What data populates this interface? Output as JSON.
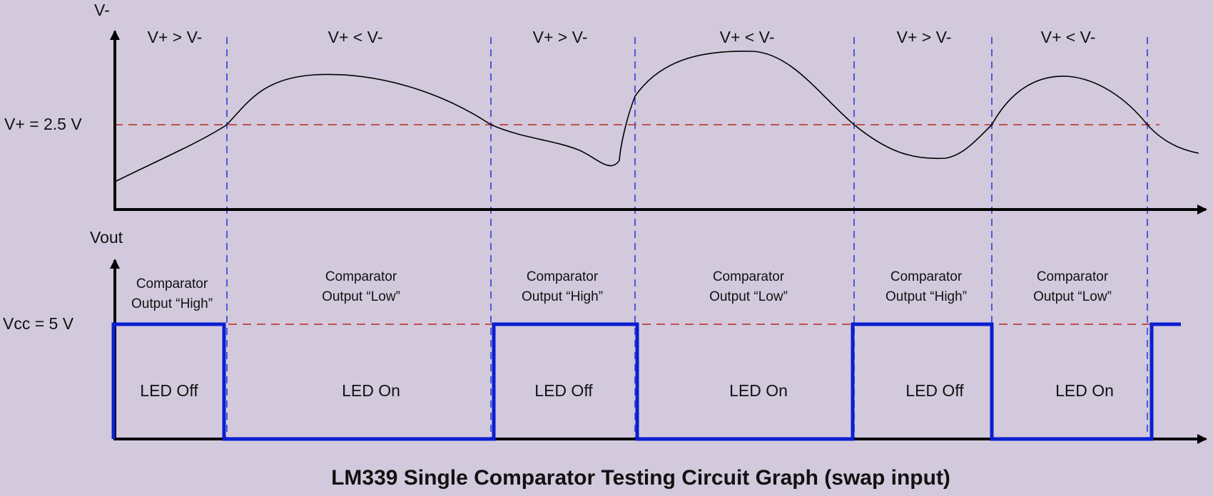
{
  "top_axis_label": "V-",
  "bottom_axis_label": "Vout",
  "vplus_label": "V+ = 2.5 V",
  "vcc_label": "Vcc = 5 V",
  "title": "LM339 Single Comparator Testing Circuit Graph (swap input)",
  "colors": {
    "background": "#d3c9dd",
    "axis": "#000000",
    "divider": "#4a5cd6",
    "reference": "#c0504d",
    "output": "#0a1fd0",
    "signal": "#000000"
  },
  "regions": [
    {
      "condition": "V+ > V-",
      "output_line1": "Comparator",
      "output_line2": "Output “High”",
      "led": "LED Off",
      "state": "high"
    },
    {
      "condition": "V+ < V-",
      "output_line1": "Comparator",
      "output_line2": "Output “Low”",
      "led": "LED On",
      "state": "low"
    },
    {
      "condition": "V+ > V-",
      "output_line1": "Comparator",
      "output_line2": "Output “High”",
      "led": "LED Off",
      "state": "high"
    },
    {
      "condition": "V+ < V-",
      "output_line1": "Comparator",
      "output_line2": "Output “Low”",
      "led": "LED On",
      "state": "low"
    },
    {
      "condition": "V+ > V-",
      "output_line1": "Comparator",
      "output_line2": "Output “High”",
      "led": "LED Off",
      "state": "high"
    },
    {
      "condition": "V+ < V-",
      "output_line1": "Comparator",
      "output_line2": "Output “Low”",
      "led": "LED On",
      "state": "low"
    }
  ]
}
